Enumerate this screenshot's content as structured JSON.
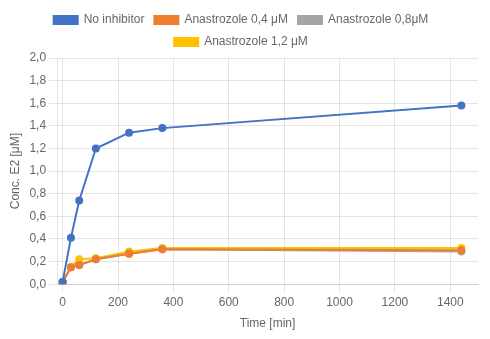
{
  "chart_data": {
    "type": "line",
    "xlabel": "Time [min]",
    "ylabel": "Conc. E2 [μM]",
    "x": [
      0,
      30,
      60,
      120,
      240,
      360,
      1440
    ],
    "series": [
      {
        "name": "No inhibitor",
        "color": "#4472C4",
        "values": [
          0.02,
          0.41,
          0.74,
          1.2,
          1.34,
          1.38,
          1.58
        ]
      },
      {
        "name": "Anastrozole 0,4 μM",
        "color": "#ED7D31",
        "values": [
          0.02,
          0.15,
          0.17,
          0.22,
          0.27,
          0.31,
          0.3
        ]
      },
      {
        "name": "Anastrozole 0,8μM",
        "color": "#A5A5A5",
        "values": [
          0.02,
          0.15,
          0.17,
          0.22,
          0.27,
          0.31,
          0.29
        ]
      },
      {
        "name": "Anastrozole 1,2 μM",
        "color": "#FFC000",
        "values": [
          0.02,
          0.15,
          0.22,
          0.23,
          0.29,
          0.32,
          0.32
        ]
      }
    ],
    "xlim": [
      -20,
      1500
    ],
    "xticks": [
      0,
      200,
      400,
      600,
      800,
      1000,
      1200,
      1400
    ],
    "ylim": [
      0.0,
      2.0
    ],
    "yticks": [
      {
        "value": 0.0,
        "label": "0,0"
      },
      {
        "value": 0.2,
        "label": "0,2"
      },
      {
        "value": 0.4,
        "label": "0,4"
      },
      {
        "value": 0.6,
        "label": "0,6"
      },
      {
        "value": 0.8,
        "label": "0,8"
      },
      {
        "value": 1.0,
        "label": "1,0"
      },
      {
        "value": 1.2,
        "label": "1,2"
      },
      {
        "value": 1.4,
        "label": "1,4"
      },
      {
        "value": 1.6,
        "label": "1,6"
      },
      {
        "value": 1.8,
        "label": "1,8"
      },
      {
        "value": 2.0,
        "label": "2,0"
      }
    ],
    "grid": true,
    "legend": "top",
    "marker": "circle"
  }
}
